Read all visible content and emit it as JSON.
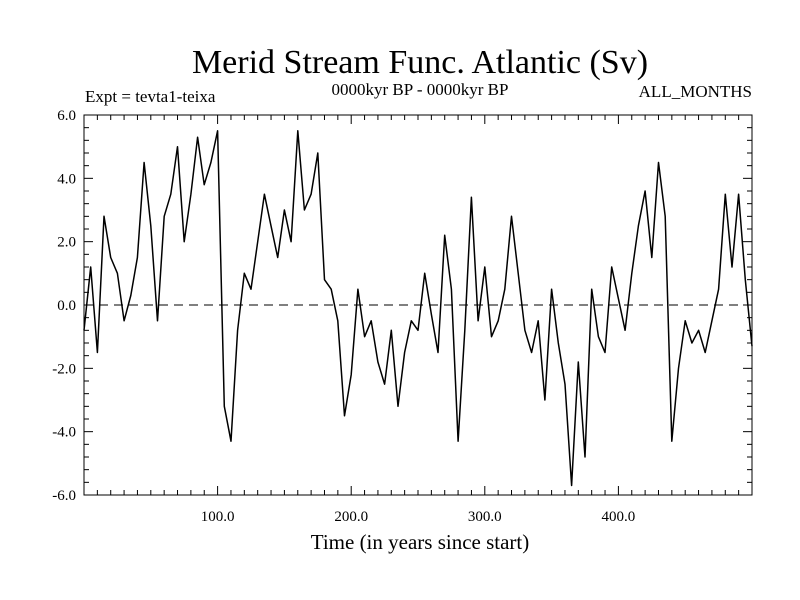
{
  "chart_data": {
    "type": "line",
    "title": "Merid Stream Func. Atlantic (Sv)",
    "experiment_label": "Expt = tevta1-teixa",
    "period_label": "0000kyr BP - 0000kyr BP",
    "months_label": "ALL_MONTHS",
    "xlabel": "Time (in years since start)",
    "ylabel": "",
    "xlim": [
      0,
      500
    ],
    "ylim": [
      -6,
      6
    ],
    "x_ticks": [
      100,
      200,
      300,
      400
    ],
    "x_tick_labels": [
      "100.0",
      "200.0",
      "300.0",
      "400.0"
    ],
    "y_ticks": [
      -6,
      -4,
      -2,
      0,
      2,
      4,
      6
    ],
    "y_tick_labels": [
      "-6.0",
      "-4.0",
      "-2.0",
      "0.0",
      "2.0",
      "4.0",
      "6.0"
    ],
    "reference_line": 0,
    "grid": false,
    "series": [
      {
        "name": "Merid Stream Func. Atlantic",
        "x": [
          0,
          5,
          10,
          15,
          20,
          25,
          30,
          35,
          40,
          45,
          50,
          55,
          60,
          65,
          70,
          75,
          80,
          85,
          90,
          95,
          100,
          105,
          110,
          115,
          120,
          125,
          130,
          135,
          140,
          145,
          150,
          155,
          160,
          165,
          170,
          175,
          180,
          185,
          190,
          195,
          200,
          205,
          210,
          215,
          220,
          225,
          230,
          235,
          240,
          245,
          250,
          255,
          260,
          265,
          270,
          275,
          280,
          285,
          290,
          295,
          300,
          305,
          310,
          315,
          320,
          325,
          330,
          335,
          340,
          345,
          350,
          355,
          360,
          365,
          370,
          375,
          380,
          385,
          390,
          395,
          400,
          405,
          410,
          415,
          420,
          425,
          430,
          435,
          440,
          445,
          450,
          455,
          460,
          465,
          470,
          475,
          480,
          485,
          490,
          495,
          500
        ],
        "values": [
          -0.8,
          1.2,
          -1.5,
          2.8,
          1.5,
          1.0,
          -0.5,
          0.3,
          1.5,
          4.5,
          2.5,
          -0.5,
          2.8,
          3.5,
          5.0,
          2.0,
          3.5,
          5.3,
          3.8,
          4.5,
          5.5,
          -3.2,
          -4.3,
          -0.8,
          1.0,
          0.5,
          2.0,
          3.5,
          2.5,
          1.5,
          3.0,
          2.0,
          5.5,
          3.0,
          3.5,
          4.8,
          0.8,
          0.5,
          -0.5,
          -3.5,
          -2.2,
          0.5,
          -1.0,
          -0.5,
          -1.8,
          -2.5,
          -0.8,
          -3.2,
          -1.5,
          -0.5,
          -0.8,
          1.0,
          -0.3,
          -1.5,
          2.2,
          0.5,
          -4.3,
          -0.8,
          3.4,
          -0.5,
          1.2,
          -1.0,
          -0.5,
          0.5,
          2.8,
          1.0,
          -0.8,
          -1.5,
          -0.5,
          -3.0,
          0.5,
          -1.2,
          -2.5,
          -5.7,
          -1.8,
          -4.8,
          0.5,
          -1.0,
          -1.5,
          1.2,
          0.2,
          -0.8,
          1.0,
          2.5,
          3.6,
          1.5,
          4.5,
          2.8,
          -4.3,
          -2.0,
          -0.5,
          -1.2,
          -0.8,
          -1.5,
          -0.5,
          0.5,
          3.5,
          1.2,
          3.5,
          0.8,
          -1.3
        ]
      }
    ]
  }
}
